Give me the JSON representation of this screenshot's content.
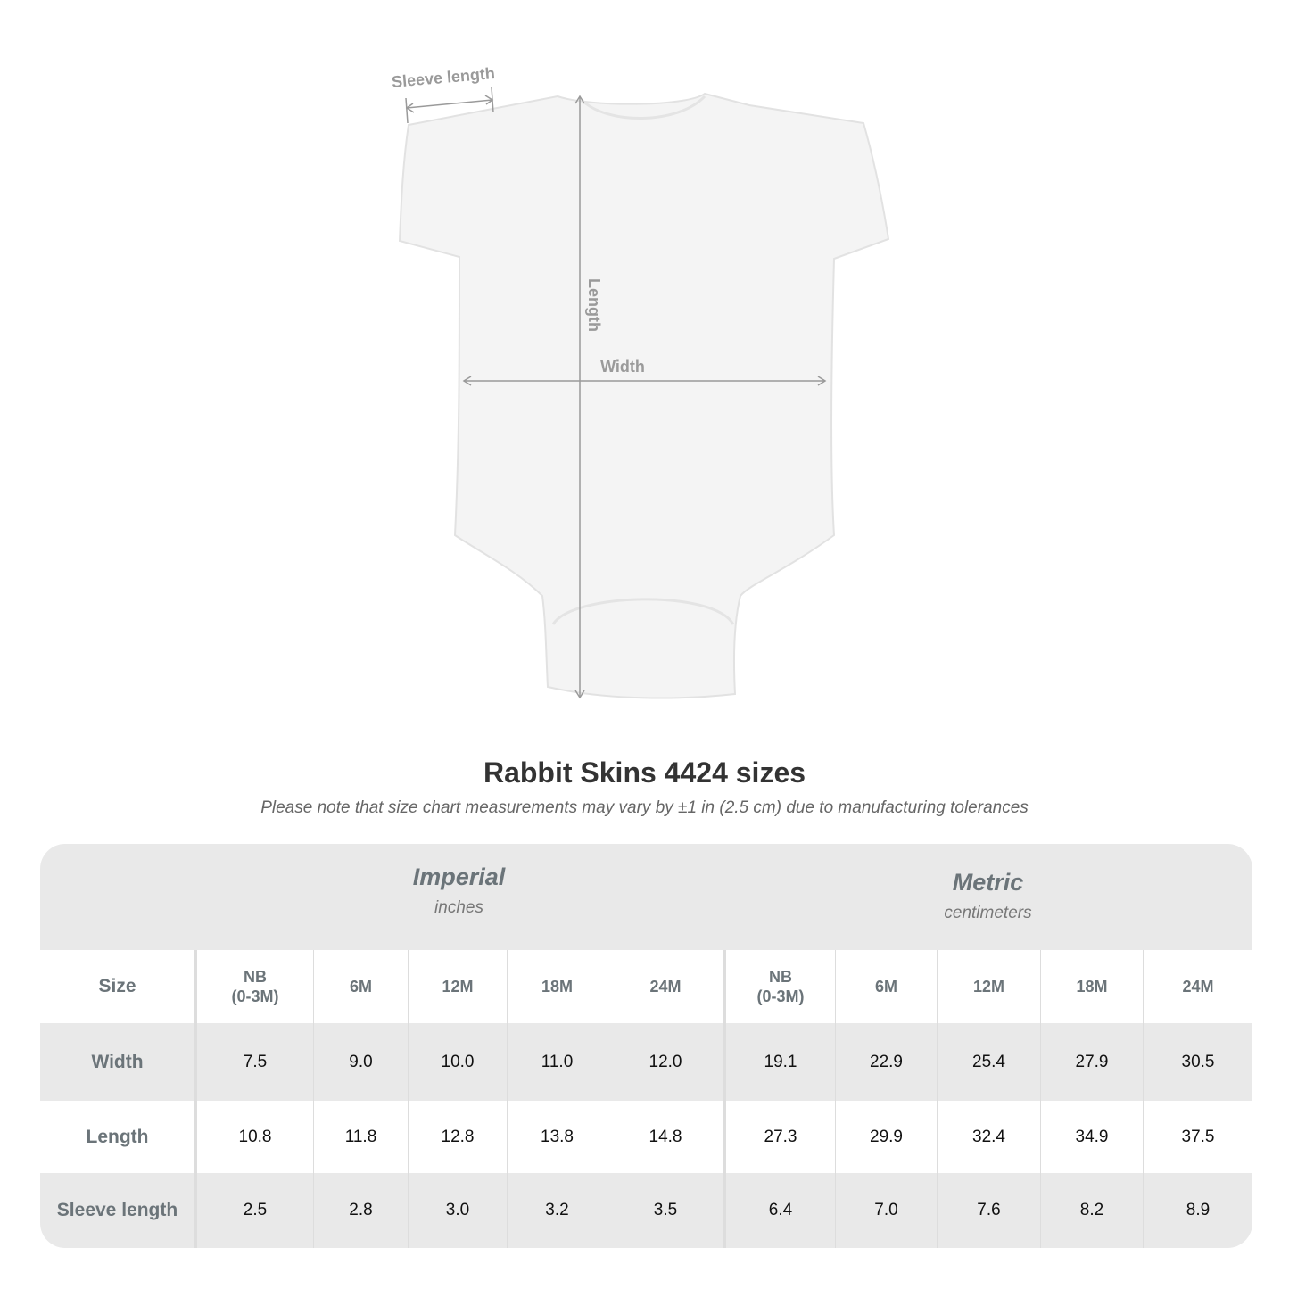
{
  "diagram": {
    "labels": {
      "sleeve_length": "Sleeve length",
      "length": "Length",
      "width": "Width"
    },
    "colors": {
      "garment": "#f4f4f4",
      "measure_line": "#9a9a9a"
    }
  },
  "title": "Rabbit Skins 4424 sizes",
  "note": "Please note that size chart measurements may vary by ±1 in (2.5 cm) due to manufacturing tolerances",
  "table": {
    "groups": [
      {
        "name": "Imperial",
        "unit": "inches"
      },
      {
        "name": "Metric",
        "unit": "centimeters"
      }
    ],
    "size_label": "Size",
    "sizes": [
      "NB\n(0-3M)",
      "6M",
      "12M",
      "18M",
      "24M",
      "NB\n(0-3M)",
      "6M",
      "12M",
      "18M",
      "24M"
    ],
    "rows": [
      {
        "label": "Width",
        "values": [
          "7.5",
          "9.0",
          "10.0",
          "11.0",
          "12.0",
          "19.1",
          "22.9",
          "25.4",
          "27.9",
          "30.5"
        ]
      },
      {
        "label": "Length",
        "values": [
          "10.8",
          "11.8",
          "12.8",
          "13.8",
          "14.8",
          "27.3",
          "29.9",
          "32.4",
          "34.9",
          "37.5"
        ]
      },
      {
        "label": "Sleeve length",
        "values": [
          "2.5",
          "2.8",
          "3.0",
          "3.2",
          "3.5",
          "6.4",
          "7.0",
          "7.6",
          "8.2",
          "8.9"
        ]
      }
    ],
    "colors": {
      "header_bg": "#e9e9e9",
      "stripe_bg": "#e9e9e9",
      "label_text": "#6b7479"
    }
  }
}
